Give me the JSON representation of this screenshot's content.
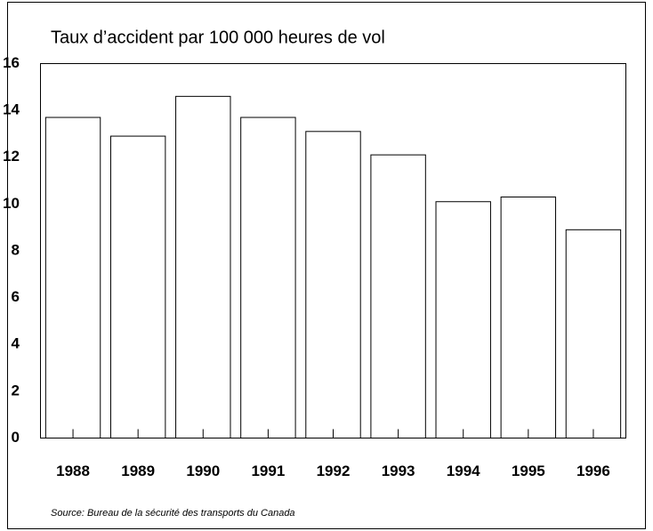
{
  "chart_data": {
    "type": "bar",
    "title": "Taux d’accident par 100 000 heures de vol",
    "categories": [
      "1988",
      "1989",
      "1990",
      "1991",
      "1992",
      "1993",
      "1994",
      "1995",
      "1996"
    ],
    "values": [
      13.7,
      12.9,
      14.6,
      13.7,
      13.1,
      12.1,
      10.1,
      10.3,
      8.9
    ],
    "color": "#ffffff",
    "ylim": [
      0,
      16
    ],
    "yticks": [
      0,
      2,
      4,
      6,
      8,
      10,
      12,
      14,
      16
    ],
    "grid": false,
    "source": "Source:  Bureau de la sécurité des transports du Canada"
  }
}
